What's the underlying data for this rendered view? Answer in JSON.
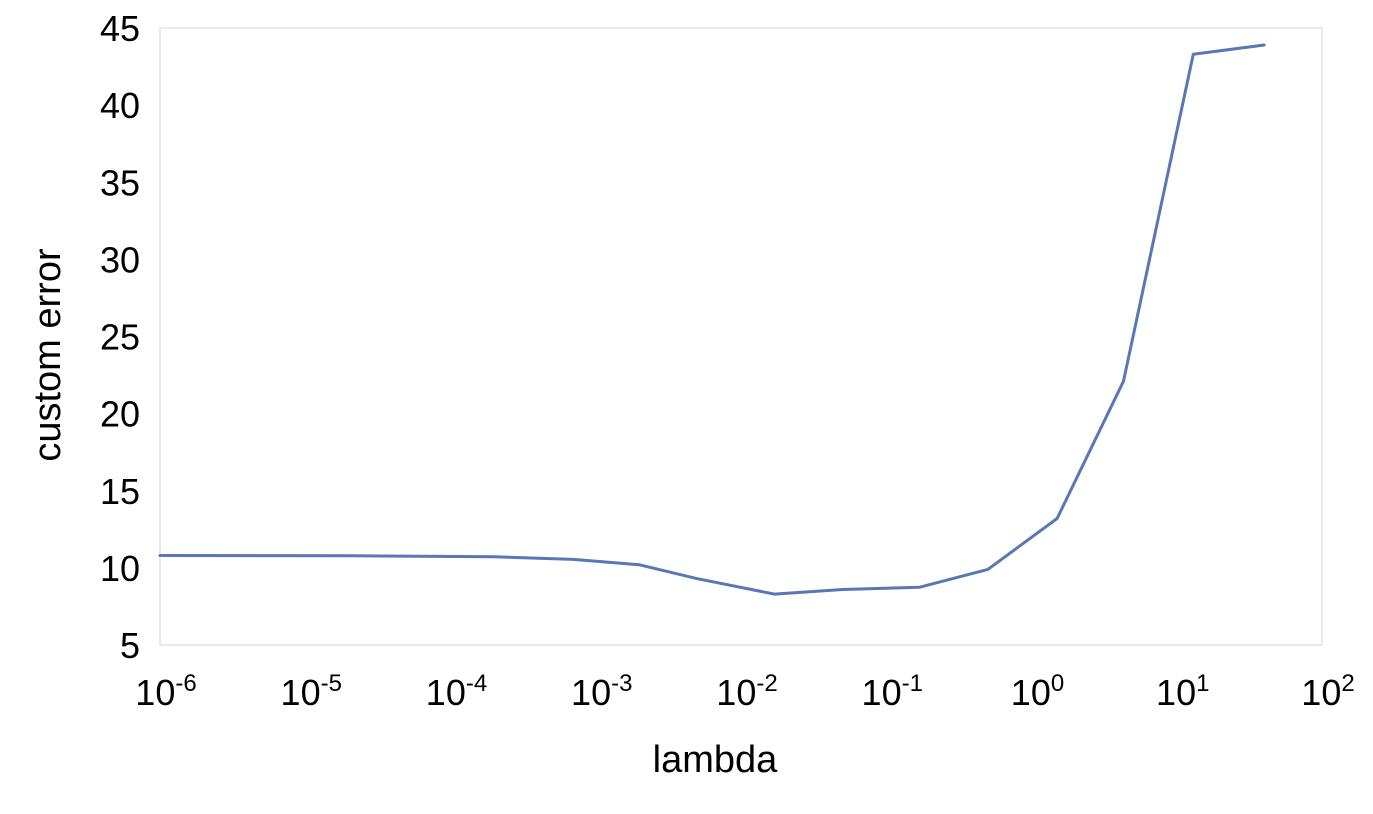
{
  "chart_data": {
    "type": "line",
    "xscale": "log",
    "xlabel": "lambda",
    "ylabel": "custom error",
    "xlim": [
      1e-06,
      100
    ],
    "ylim": [
      5,
      45
    ],
    "grid": false,
    "line_color": "#5b76b5",
    "frame_color": "#e3e3e3",
    "x_ticks": [
      {
        "base": "10",
        "exp": "-6",
        "value": 1e-06
      },
      {
        "base": "10",
        "exp": "-5",
        "value": 1e-05
      },
      {
        "base": "10",
        "exp": "-4",
        "value": 0.0001
      },
      {
        "base": "10",
        "exp": "-3",
        "value": 0.001
      },
      {
        "base": "10",
        "exp": "-2",
        "value": 0.01
      },
      {
        "base": "10",
        "exp": "-1",
        "value": 0.1
      },
      {
        "base": "10",
        "exp": "0",
        "value": 1
      },
      {
        "base": "10",
        "exp": "1",
        "value": 10
      },
      {
        "base": "10",
        "exp": "2",
        "value": 100
      }
    ],
    "y_ticks": [
      "5",
      "10",
      "15",
      "20",
      "25",
      "30",
      "35",
      "40",
      "45"
    ],
    "series": [
      {
        "x": [
          1e-06,
          2e-05,
          0.0002,
          0.0007,
          0.002,
          0.005,
          0.017,
          0.05,
          0.17,
          0.5,
          1.5,
          4.3,
          13,
          40
        ],
        "y": [
          10.8,
          10.78,
          10.72,
          10.55,
          10.2,
          9.3,
          8.3,
          8.6,
          8.75,
          9.9,
          13.2,
          22.1,
          43.3,
          43.9
        ]
      }
    ]
  }
}
